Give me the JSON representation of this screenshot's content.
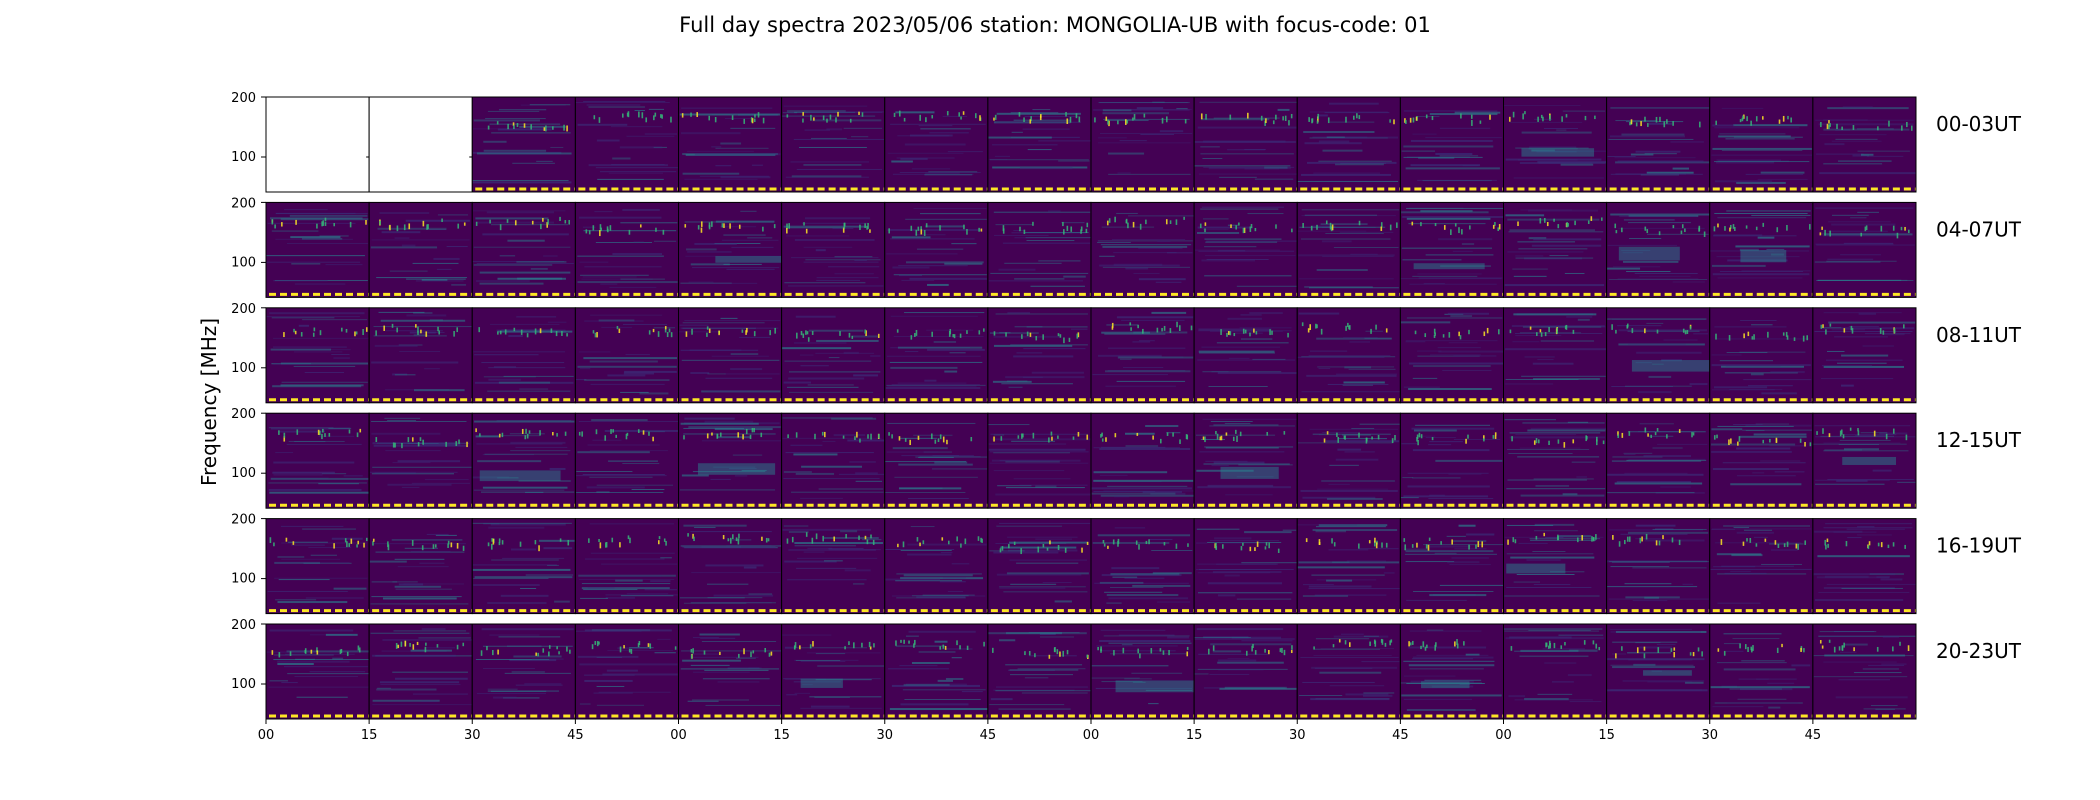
{
  "chart_data": {
    "type": "heatmap",
    "title": "Full day spectra 2023/05/06 station: MONGOLIA-UB with focus-code: 01",
    "ylabel": "Frequency [MHz]",
    "y_ticks": [
      "200",
      "100"
    ],
    "x_ticks": [
      "00",
      "15",
      "30",
      "45",
      "00",
      "15",
      "30",
      "45",
      "00",
      "15",
      "30",
      "45",
      "00",
      "15",
      "30",
      "45"
    ],
    "panels_per_row": 16,
    "panel_minutes": 15,
    "colormap": "viridis",
    "rows": [
      {
        "label": "00-03UT",
        "empty_panels": [
          0,
          1
        ]
      },
      {
        "label": "04-07UT",
        "empty_panels": []
      },
      {
        "label": "08-11UT",
        "empty_panels": []
      },
      {
        "label": "12-15UT",
        "empty_panels": []
      },
      {
        "label": "16-19UT",
        "empty_panels": []
      },
      {
        "label": "20-23UT",
        "empty_panels": []
      }
    ],
    "colors": {
      "background": "#440154",
      "low": "#3b2f7a",
      "mid": "#2a7f8e",
      "high": "#35b779",
      "peak": "#fde725"
    }
  }
}
